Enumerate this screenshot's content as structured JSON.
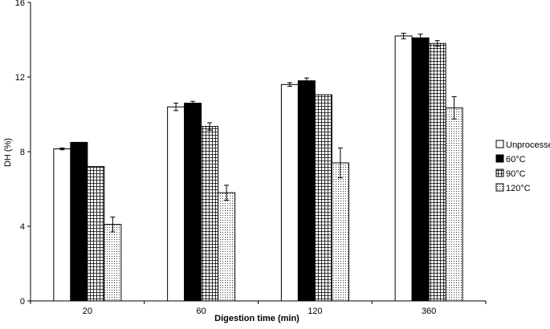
{
  "chart_data": {
    "type": "bar",
    "xlabel": "Digestion time (min)",
    "ylabel": "DH (%)",
    "ylim": [
      0,
      16
    ],
    "yticks": [
      0,
      4,
      8,
      12,
      16
    ],
    "grid": false,
    "legend_position": "right",
    "categories": [
      "20",
      "60",
      "120",
      "360"
    ],
    "series": [
      {
        "name": "Unprocessed",
        "pattern": "white-fill",
        "values": [
          8.15,
          10.4,
          11.6,
          14.2
        ],
        "errors": [
          0.05,
          0.2,
          0.1,
          0.15
        ]
      },
      {
        "name": "60°C",
        "pattern": "solid-black",
        "values": [
          8.5,
          10.6,
          11.8,
          14.1
        ],
        "errors": [
          0.0,
          0.1,
          0.15,
          0.2
        ]
      },
      {
        "name": "90°C",
        "pattern": "grid-hatch",
        "values": [
          7.2,
          9.35,
          11.05,
          13.8
        ],
        "errors": [
          0.0,
          0.2,
          0.0,
          0.15
        ]
      },
      {
        "name": "120°C",
        "pattern": "dotted",
        "values": [
          4.1,
          5.8,
          7.4,
          10.35
        ],
        "errors": [
          0.4,
          0.4,
          0.8,
          0.6
        ]
      }
    ]
  }
}
